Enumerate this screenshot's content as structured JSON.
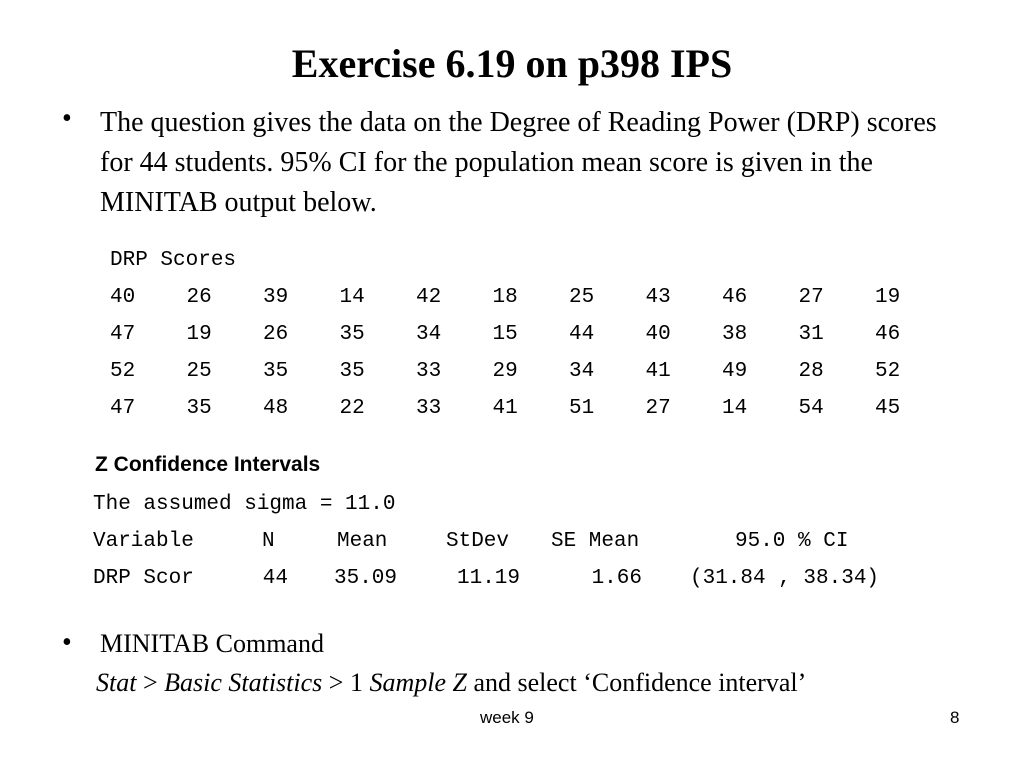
{
  "title": "Exercise 6.19 on p398 IPS",
  "bullets": [
    "The question gives the data on the Degree of Reading Power (DRP) scores for 44 students. 95% CI for the population mean score is given in the MINITAB output below.",
    "MINITAB Command"
  ],
  "drp": {
    "header": "DRP Scores",
    "rows": [
      [
        40,
        26,
        39,
        14,
        42,
        18,
        25,
        43,
        46,
        27,
        19
      ],
      [
        47,
        19,
        26,
        35,
        34,
        15,
        44,
        40,
        38,
        31,
        46
      ],
      [
        52,
        25,
        35,
        35,
        33,
        29,
        34,
        41,
        49,
        28,
        52
      ],
      [
        47,
        35,
        48,
        22,
        33,
        41,
        51,
        27,
        14,
        54,
        45
      ]
    ]
  },
  "z": {
    "title": "Z Confidence Intervals",
    "sigma_line": "The assumed sigma = 11.0",
    "header": [
      "Variable",
      "N",
      "Mean",
      "StDev",
      "SE Mean",
      "95.0 % CI"
    ],
    "row": [
      "DRP Scor",
      "44",
      "35.09",
      "11.19",
      "1.66",
      "(31.84 , 38.34)"
    ]
  },
  "command": [
    "Stat",
    " > ",
    "Basic Statistics",
    " > 1 ",
    "Sample Z",
    " and select ‘Confidence interval’"
  ],
  "footer": {
    "left": "week 9",
    "page": "8"
  }
}
